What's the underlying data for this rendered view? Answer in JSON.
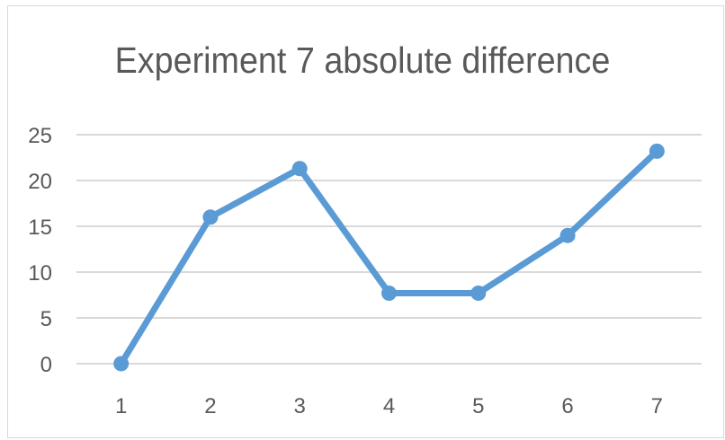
{
  "chart_data": {
    "type": "line",
    "title": "Experiment 7 absolute difference",
    "xlabel": "",
    "ylabel": "",
    "categories": [
      "1",
      "2",
      "3",
      "4",
      "5",
      "6",
      "7"
    ],
    "series": [
      {
        "values": [
          0,
          16,
          21.3,
          7.7,
          7.7,
          14,
          23.2
        ]
      }
    ],
    "ylim": [
      0,
      25
    ],
    "yticks": [
      "0",
      "5",
      "10",
      "15",
      "20",
      "25"
    ],
    "grid": "horizontal",
    "legend": "none",
    "colors": {
      "line": "#5b9bd5",
      "grid": "#d9d9d9",
      "text": "#595959"
    }
  }
}
